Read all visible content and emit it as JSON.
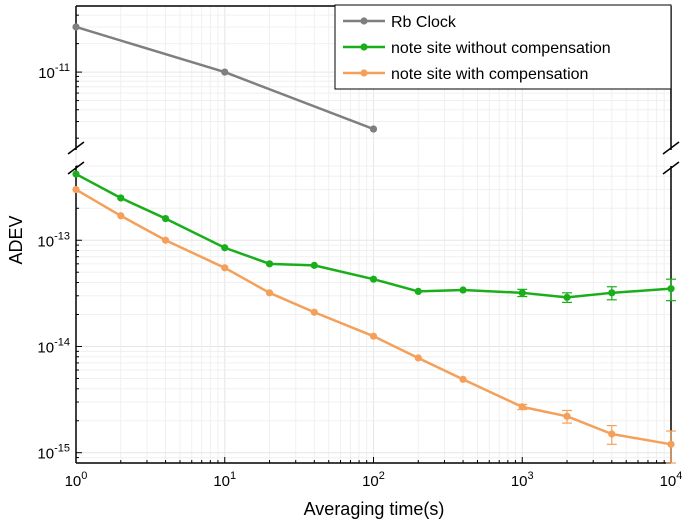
{
  "chart_data": {
    "type": "line",
    "xlabel": "Averaging time(s)",
    "ylabel": "ADEV",
    "x_scale": "log",
    "y_scale": "log",
    "y_axis_break": true,
    "grid": true,
    "legend_position": "top-right",
    "xlim": [
      1,
      10000
    ],
    "ylim_upper_panel": [
      1.5e-12,
      5e-11
    ],
    "ylim_lower_panel": [
      8e-16,
      5e-13
    ],
    "x_tick_labels": [
      {
        "base": "10",
        "exp": "0"
      },
      {
        "base": "10",
        "exp": "1"
      },
      {
        "base": "10",
        "exp": "2"
      },
      {
        "base": "10",
        "exp": "3"
      },
      {
        "base": "10",
        "exp": "4"
      }
    ],
    "y_tick_labels_upper": [
      {
        "base": "10",
        "exp": "-11"
      }
    ],
    "y_tick_labels_lower": [
      {
        "base": "10",
        "exp": "-13"
      },
      {
        "base": "10",
        "exp": "-14"
      },
      {
        "base": "10",
        "exp": "-15"
      }
    ],
    "series": [
      {
        "name": "Rb Clock",
        "color": "#7f7f7f",
        "panel": "upper",
        "x": [
          1,
          10,
          100
        ],
        "y": [
          3e-11,
          1e-11,
          2.5e-12
        ],
        "err": [
          0,
          0,
          0
        ]
      },
      {
        "name": "note site without compensation",
        "color": "#1aaf1a",
        "panel": "lower",
        "x": [
          1,
          2,
          4,
          10,
          20,
          40,
          100,
          200,
          400,
          1000,
          2000,
          4000,
          10000
        ],
        "y": [
          4.2e-13,
          2.5e-13,
          1.6e-13,
          8.5e-14,
          6e-14,
          5.8e-14,
          4.3e-14,
          3.3e-14,
          3.4e-14,
          3.2e-14,
          2.9e-14,
          3.2e-14,
          3.5e-14
        ],
        "err": [
          0,
          0,
          0,
          0,
          0,
          0,
          0,
          0,
          0,
          2.5e-15,
          3e-15,
          4.5e-15,
          8e-15
        ]
      },
      {
        "name": "note site with compensation",
        "color": "#f5a05a",
        "panel": "lower",
        "x": [
          1,
          2,
          4,
          10,
          20,
          40,
          100,
          200,
          400,
          1000,
          2000,
          4000,
          10000
        ],
        "y": [
          3e-13,
          1.7e-13,
          1e-13,
          5.5e-14,
          3.2e-14,
          2.1e-14,
          1.25e-14,
          7.8e-15,
          4.9e-15,
          2.7e-15,
          2.2e-15,
          1.5e-15,
          1.2e-15
        ],
        "err": [
          0,
          0,
          0,
          0,
          0,
          0,
          0,
          0,
          0,
          1.5e-16,
          3e-16,
          3e-16,
          4e-16
        ]
      }
    ]
  }
}
